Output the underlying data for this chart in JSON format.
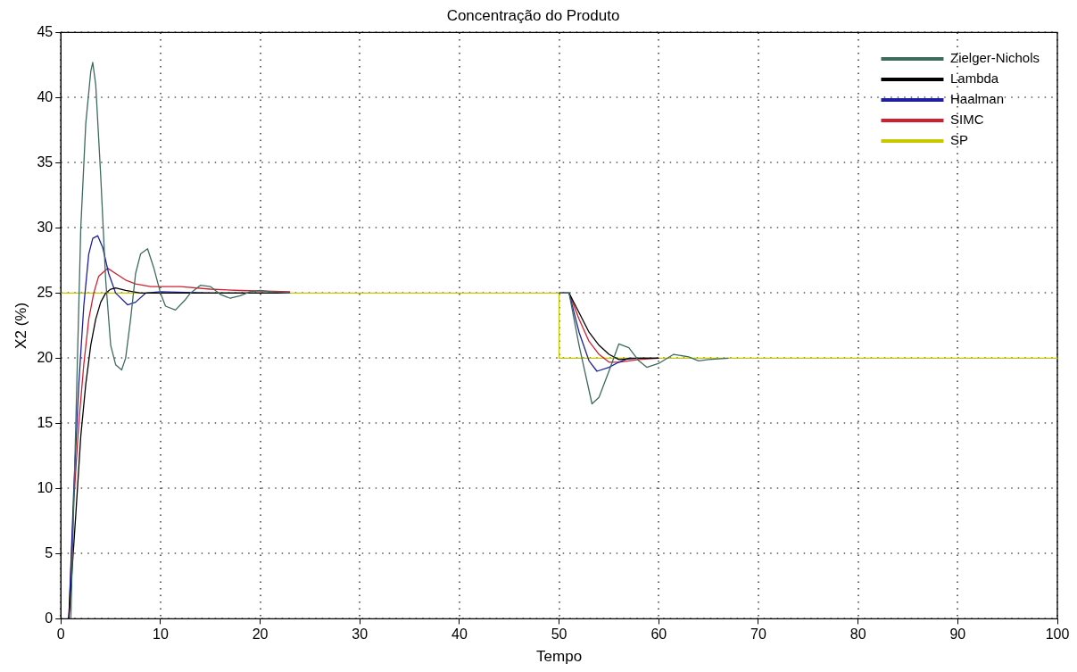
{
  "chart_data": {
    "type": "line",
    "title": "Concentração do Produto",
    "xlabel": "Tempo",
    "ylabel": "X2 (%)",
    "xlim": [
      0,
      100
    ],
    "xticks": [
      0,
      10,
      20,
      30,
      40,
      50,
      60,
      70,
      80,
      90,
      100
    ],
    "ylim": [
      0,
      45
    ],
    "yticks": [
      0,
      5,
      10,
      15,
      20,
      25,
      30,
      35,
      40,
      45
    ],
    "grid": true,
    "legend": "top right",
    "line_style": "solid",
    "marker": "none",
    "series": [
      {
        "name": "Zielger-Nichols",
        "color": "#3d6b5e",
        "x": [
          1,
          1.5,
          2,
          2.5,
          3,
          3.2,
          3.5,
          4,
          4.5,
          5,
          5.5,
          6.1,
          6.5,
          7,
          7.5,
          8,
          8.7,
          9.3,
          10,
          10.5,
          11.5,
          12.5,
          13,
          14,
          15,
          16,
          17,
          18,
          19,
          20,
          21,
          23,
          35,
          50,
          51,
          52,
          53.3,
          54,
          55,
          56,
          57,
          58,
          58.8,
          60,
          61.5,
          63,
          64,
          65,
          67
        ],
        "values": [
          0,
          15,
          30,
          38,
          42,
          42.7,
          41,
          34,
          26,
          21,
          19.5,
          19.1,
          20,
          23,
          26.5,
          28,
          28.4,
          27,
          25,
          24,
          23.7,
          24.5,
          25,
          25.6,
          25.5,
          24.9,
          24.6,
          24.8,
          25.1,
          25.2,
          25.1,
          25,
          null,
          25,
          25,
          21,
          16.5,
          17,
          19,
          21.1,
          20.8,
          19.8,
          19.3,
          19.6,
          20.3,
          20.1,
          19.8,
          19.9,
          20
        ]
      },
      {
        "name": "Lambda",
        "color": "#000000",
        "x": [
          0.8,
          1.5,
          2,
          2.5,
          3,
          3.5,
          4,
          4.5,
          5,
          5.5,
          6.5,
          8,
          10,
          15,
          23,
          35,
          50,
          51,
          52,
          53,
          54,
          55,
          56,
          58,
          60
        ],
        "values": [
          0,
          8,
          14,
          18,
          21,
          23,
          24.3,
          25,
          25.3,
          25.4,
          25.2,
          25,
          25,
          25,
          25,
          null,
          25,
          25,
          23.5,
          22,
          21,
          20.3,
          19.9,
          20,
          20
        ]
      },
      {
        "name": "Haalman",
        "color": "#1f1f9f",
        "x": [
          0.8,
          1.3,
          1.8,
          2.3,
          2.8,
          3.2,
          3.7,
          4.2,
          4.8,
          5.5,
          6.7,
          7.5,
          8.5,
          10,
          15,
          23,
          35,
          50,
          51,
          52,
          53,
          53.8,
          55,
          56,
          57,
          58,
          60
        ],
        "values": [
          0,
          10,
          18,
          24,
          28,
          29.2,
          29.4,
          28.5,
          26.5,
          25,
          24.1,
          24.3,
          25,
          25.1,
          25,
          25,
          null,
          25,
          25,
          22,
          19.8,
          19,
          19.3,
          19.7,
          20,
          20,
          20
        ]
      },
      {
        "name": "SIMC",
        "color": "#d02030",
        "x": [
          0.8,
          1.3,
          1.8,
          2.3,
          2.8,
          3.3,
          3.8,
          4.7,
          5.5,
          6.5,
          7.5,
          9,
          10,
          12,
          15,
          18,
          23,
          35,
          50,
          51,
          52,
          53,
          54,
          55,
          56,
          58,
          60
        ],
        "values": [
          0,
          9,
          15,
          19.5,
          23,
          25,
          26.3,
          26.9,
          26.5,
          26,
          25.7,
          25.5,
          25.5,
          25.5,
          25.3,
          25.2,
          25.1,
          null,
          25,
          25,
          23,
          21.3,
          20.3,
          19.7,
          19.7,
          19.9,
          20
        ]
      },
      {
        "name": "SP",
        "color": "#c8c800",
        "x": [
          0,
          50,
          50,
          100
        ],
        "values": [
          25,
          25,
          20,
          20
        ]
      }
    ]
  }
}
